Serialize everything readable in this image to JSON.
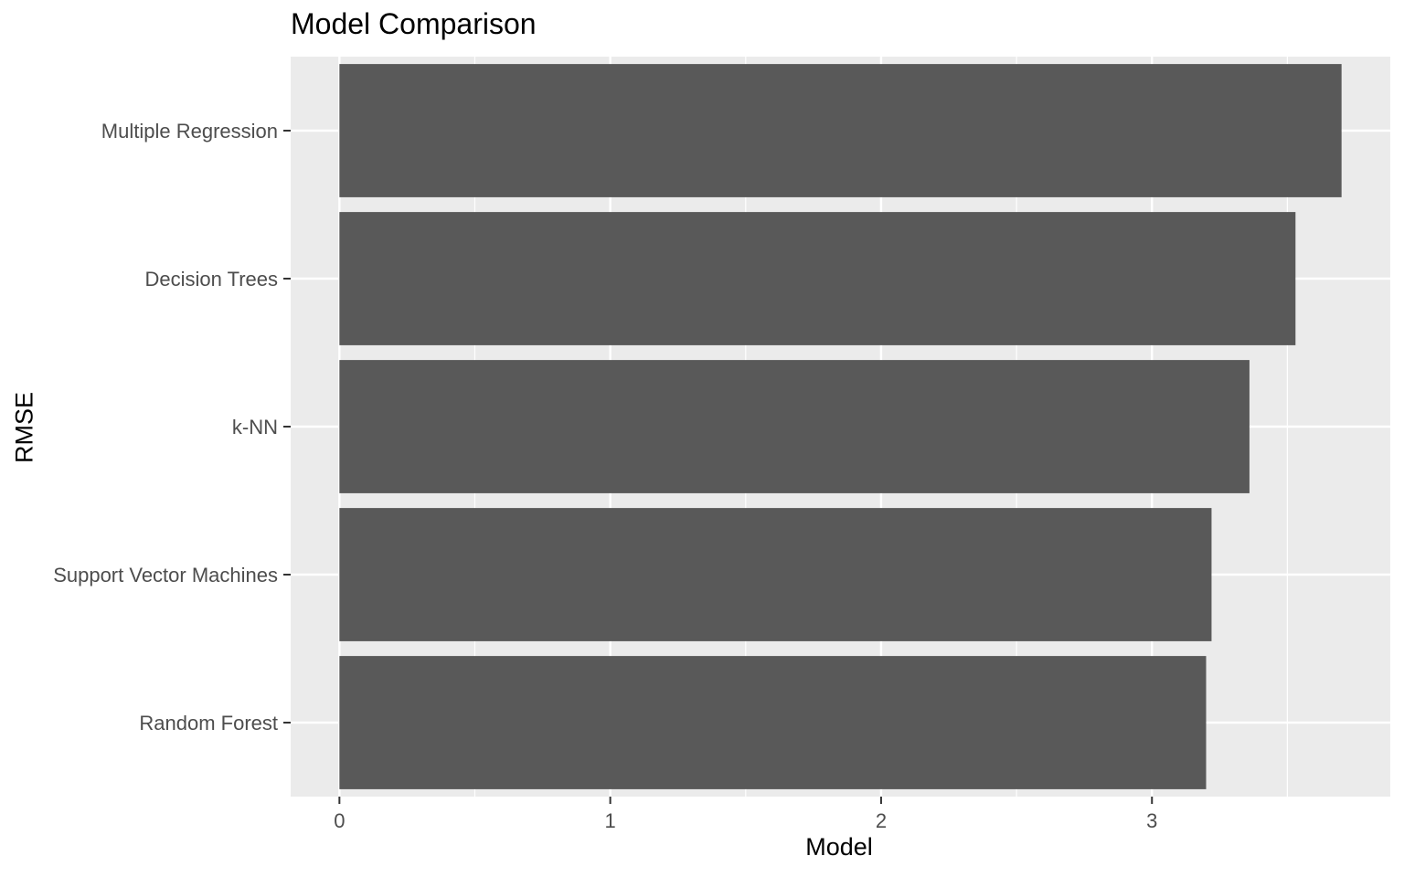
{
  "chart_data": {
    "type": "bar",
    "orientation": "horizontal",
    "title": "Model Comparison",
    "xlabel": "Model",
    "ylabel": "RMSE",
    "categories": [
      "Multiple Regression",
      "Decision Trees",
      "k-NN",
      "Support Vector Machines",
      "Random Forest"
    ],
    "values": [
      3.7,
      3.53,
      3.36,
      3.22,
      3.2
    ],
    "xlim": [
      -0.18,
      3.88
    ],
    "xticks": [
      0,
      1,
      2,
      3
    ],
    "grid": true,
    "colors": {
      "panel": "#EBEBEB",
      "bar": "#595959",
      "grid_major": "#FFFFFF",
      "tick_text": "#4D4D4D"
    }
  }
}
